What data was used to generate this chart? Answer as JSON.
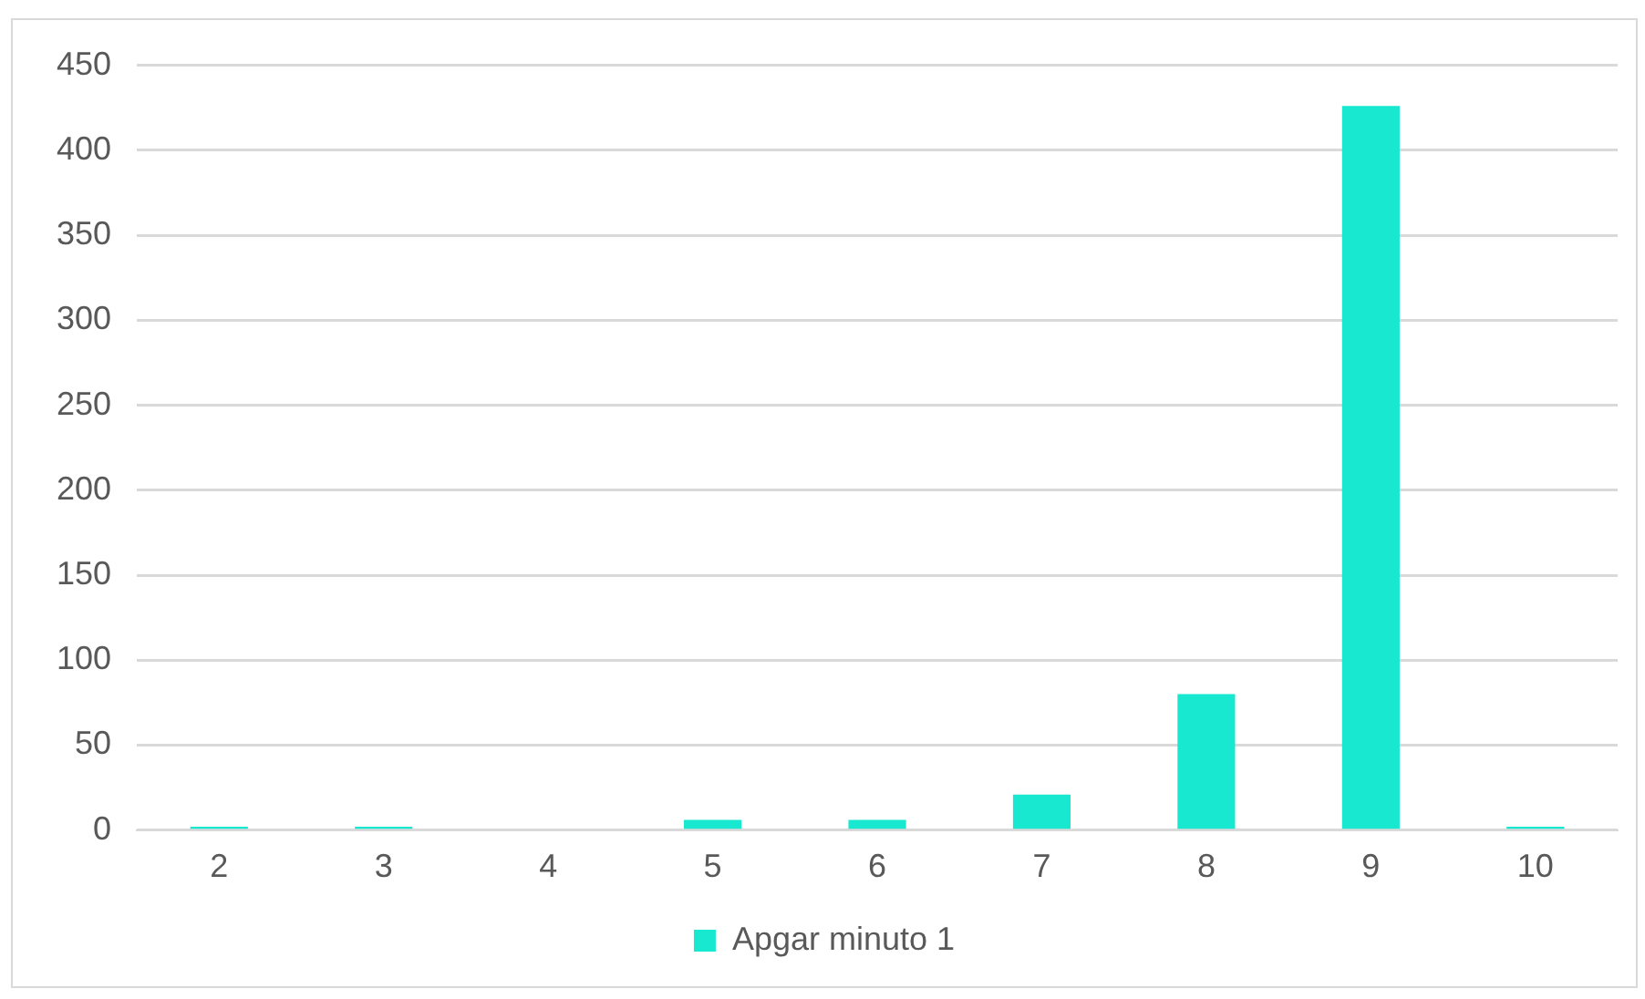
{
  "chart_data": {
    "type": "bar",
    "categories": [
      "2",
      "3",
      "4",
      "5",
      "6",
      "7",
      "8",
      "9",
      "10"
    ],
    "series": [
      {
        "name": "Apgar minuto 1",
        "color": "#17e8cf",
        "values": [
          2,
          2,
          0,
          6,
          6,
          21,
          80,
          426,
          2
        ]
      }
    ],
    "ylim": [
      0,
      450
    ],
    "yticks": [
      0,
      50,
      100,
      150,
      200,
      250,
      300,
      350,
      400,
      450
    ],
    "grid": "y",
    "legend": "bottom"
  }
}
